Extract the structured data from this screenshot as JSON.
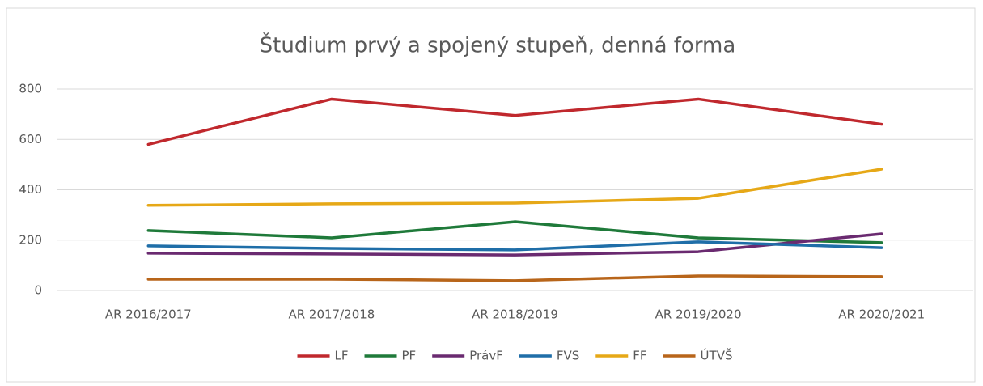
{
  "chart_data": {
    "type": "line",
    "title": "Študium prvý a spojený stupeň, denná forma",
    "categories": [
      "AR 2016/2017",
      "AR 2017/2018",
      "AR 2018/2019",
      "AR 2019/2020",
      "AR 2020/2021"
    ],
    "series": [
      {
        "name": "LF",
        "color": "#c0282d",
        "values": [
          580,
          760,
          695,
          760,
          660
        ]
      },
      {
        "name": "PF",
        "color": "#1f7a3a",
        "values": [
          238,
          209,
          273,
          209,
          190
        ]
      },
      {
        "name": "PrávF",
        "color": "#6a2a70",
        "values": [
          148,
          145,
          141,
          154,
          225
        ]
      },
      {
        "name": "FVS",
        "color": "#1f6ea8",
        "values": [
          177,
          167,
          161,
          193,
          170
        ]
      },
      {
        "name": "FF",
        "color": "#e6a817",
        "values": [
          338,
          344,
          347,
          366,
          482
        ]
      },
      {
        "name": "ÚTVŠ",
        "color": "#b8651a",
        "values": [
          45,
          45,
          39,
          58,
          55
        ]
      }
    ],
    "ylim": [
      0,
      800
    ],
    "yticks": [
      0,
      200,
      400,
      600,
      800
    ],
    "grid": true,
    "legend": "bottom"
  }
}
